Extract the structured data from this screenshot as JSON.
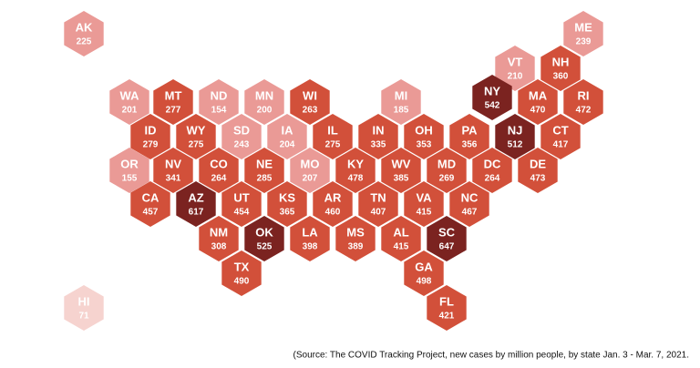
{
  "states": [
    {
      "label": "AK",
      "value": 225,
      "color": "#ea9a96"
    },
    {
      "label": "ME",
      "value": 239,
      "color": "#ea9a96"
    },
    {
      "label": "VT",
      "value": 210,
      "color": "#ea9a96"
    },
    {
      "label": "NH",
      "value": 360,
      "color": "#d2503a"
    },
    {
      "label": "WA",
      "value": 201,
      "color": "#ea9a96"
    },
    {
      "label": "MT",
      "value": 277,
      "color": "#d2503a"
    },
    {
      "label": "ND",
      "value": 154,
      "color": "#ea9a96"
    },
    {
      "label": "MN",
      "value": 200,
      "color": "#ea9a96"
    },
    {
      "label": "WI",
      "value": 263,
      "color": "#d2503a"
    },
    {
      "label": "MI",
      "value": 185,
      "color": "#ea9a96"
    },
    {
      "label": "NY",
      "value": 542,
      "color": "#7b2320"
    },
    {
      "label": "MA",
      "value": 470,
      "color": "#d2503a"
    },
    {
      "label": "RI",
      "value": 472,
      "color": "#d2503a"
    },
    {
      "label": "ID",
      "value": 279,
      "color": "#d2503a"
    },
    {
      "label": "WY",
      "value": 275,
      "color": "#d2503a"
    },
    {
      "label": "SD",
      "value": 243,
      "color": "#ea9a96"
    },
    {
      "label": "IA",
      "value": 204,
      "color": "#ea9a96"
    },
    {
      "label": "IL",
      "value": 275,
      "color": "#d2503a"
    },
    {
      "label": "IN",
      "value": 335,
      "color": "#d2503a"
    },
    {
      "label": "OH",
      "value": 353,
      "color": "#d2503a"
    },
    {
      "label": "PA",
      "value": 356,
      "color": "#d2503a"
    },
    {
      "label": "NJ",
      "value": 512,
      "color": "#7b2320"
    },
    {
      "label": "CT",
      "value": 417,
      "color": "#d2503a"
    },
    {
      "label": "OR",
      "value": 155,
      "color": "#ea9a96"
    },
    {
      "label": "NV",
      "value": 341,
      "color": "#d2503a"
    },
    {
      "label": "CO",
      "value": 264,
      "color": "#d2503a"
    },
    {
      "label": "NE",
      "value": 285,
      "color": "#d2503a"
    },
    {
      "label": "MO",
      "value": 207,
      "color": "#ea9a96"
    },
    {
      "label": "KY",
      "value": 478,
      "color": "#d2503a"
    },
    {
      "label": "WV",
      "value": 385,
      "color": "#d2503a"
    },
    {
      "label": "MD",
      "value": 269,
      "color": "#d2503a"
    },
    {
      "label": "DC",
      "value": 264,
      "color": "#d2503a"
    },
    {
      "label": "DE",
      "value": 473,
      "color": "#d2503a"
    },
    {
      "label": "CA",
      "value": 457,
      "color": "#d2503a"
    },
    {
      "label": "AZ",
      "value": 617,
      "color": "#7b2320"
    },
    {
      "label": "UT",
      "value": 454,
      "color": "#d2503a"
    },
    {
      "label": "KS",
      "value": 365,
      "color": "#d2503a"
    },
    {
      "label": "AR",
      "value": 460,
      "color": "#d2503a"
    },
    {
      "label": "TN",
      "value": 407,
      "color": "#d2503a"
    },
    {
      "label": "VA",
      "value": 415,
      "color": "#d2503a"
    },
    {
      "label": "NC",
      "value": 467,
      "color": "#d2503a"
    },
    {
      "label": "NM",
      "value": 308,
      "color": "#d2503a"
    },
    {
      "label": "OK",
      "value": 525,
      "color": "#7b2320"
    },
    {
      "label": "LA",
      "value": 398,
      "color": "#d2503a"
    },
    {
      "label": "MS",
      "value": 389,
      "color": "#d2503a"
    },
    {
      "label": "AL",
      "value": 415,
      "color": "#d2503a"
    },
    {
      "label": "SC",
      "value": 647,
      "color": "#7b2320"
    },
    {
      "label": "TX",
      "value": 490,
      "color": "#d2503a"
    },
    {
      "label": "GA",
      "value": 498,
      "color": "#d2503a"
    },
    {
      "label": "FL",
      "value": 421,
      "color": "#d2503a"
    },
    {
      "label": "HI",
      "value": 71,
      "color": "#f6d3cf"
    }
  ],
  "source": "(Source: The COVID Tracking Project, new cases by million people, by state Jan. 3 - Mar. 7, 2021."
}
